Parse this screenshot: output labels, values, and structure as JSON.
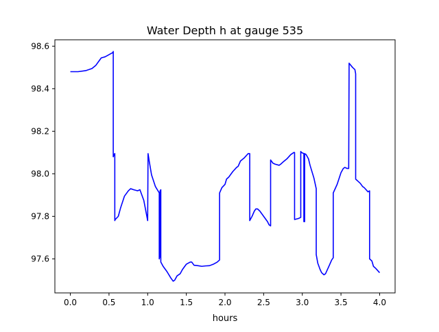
{
  "chart_data": {
    "type": "line",
    "title": "Water Depth h at gauge 535",
    "xlabel": "hours",
    "ylabel": "",
    "xlim": [
      -0.2,
      4.2
    ],
    "ylim": [
      97.44,
      98.63
    ],
    "xticks": [
      0.0,
      0.5,
      1.0,
      1.5,
      2.0,
      2.5,
      3.0,
      3.5,
      4.0
    ],
    "xtick_labels": [
      "0.0",
      "0.5",
      "1.0",
      "1.5",
      "2.0",
      "2.5",
      "3.0",
      "3.5",
      "4.0"
    ],
    "yticks": [
      97.6,
      97.8,
      98.0,
      98.2,
      98.4,
      98.6
    ],
    "ytick_labels": [
      "97.6",
      "97.8",
      "98.0",
      "98.2",
      "98.4",
      "98.6"
    ],
    "grid": false,
    "legend": "none",
    "line_color": "#0000ff",
    "series": [
      {
        "x": [
          0.0,
          0.1,
          0.2,
          0.28,
          0.33,
          0.37,
          0.4,
          0.45,
          0.5,
          0.55,
          0.555,
          0.555,
          0.565,
          0.575,
          0.575,
          0.58,
          0.62,
          0.65,
          0.7,
          0.75,
          0.78,
          0.82,
          0.87,
          0.9,
          0.95,
          1.0,
          1.005,
          1.02,
          1.05,
          1.1,
          1.15,
          1.15,
          1.16,
          1.16,
          1.17,
          1.17,
          1.2,
          1.25,
          1.3,
          1.33,
          1.35,
          1.38,
          1.42,
          1.45,
          1.5,
          1.55,
          1.57,
          1.6,
          1.65,
          1.7,
          1.75,
          1.8,
          1.85,
          1.9,
          1.93,
          1.93,
          1.96,
          2.0,
          2.02,
          2.05,
          2.1,
          2.15,
          2.17,
          2.2,
          2.25,
          2.3,
          2.32,
          2.32,
          2.35,
          2.38,
          2.4,
          2.42,
          2.45,
          2.5,
          2.55,
          2.57,
          2.59,
          2.59,
          2.6,
          2.62,
          2.65,
          2.7,
          2.72,
          2.75,
          2.8,
          2.85,
          2.89,
          2.9,
          2.9,
          2.95,
          2.98,
          2.98,
          2.99,
          3.02,
          3.02,
          3.03,
          3.03,
          3.05,
          3.08,
          3.1,
          3.15,
          3.18,
          3.18,
          3.2,
          3.23,
          3.25,
          3.28,
          3.3,
          3.35,
          3.38,
          3.4,
          3.4,
          3.45,
          3.5,
          3.53,
          3.55,
          3.58,
          3.6,
          3.605,
          3.605,
          3.65,
          3.68,
          3.69,
          3.69,
          3.72,
          3.75,
          3.78,
          3.8,
          3.85,
          3.87,
          3.87,
          3.9,
          3.92,
          3.95,
          4.0
        ],
        "y": [
          98.48,
          98.48,
          98.485,
          98.495,
          98.51,
          98.53,
          98.545,
          98.55,
          98.56,
          98.57,
          98.575,
          98.08,
          98.09,
          98.095,
          97.78,
          97.785,
          97.8,
          97.84,
          97.895,
          97.92,
          97.93,
          97.925,
          97.92,
          97.925,
          97.875,
          97.78,
          98.095,
          98.06,
          97.995,
          97.94,
          97.91,
          97.6,
          97.615,
          97.92,
          97.925,
          97.585,
          97.565,
          97.54,
          97.51,
          97.495,
          97.5,
          97.52,
          97.53,
          97.55,
          97.575,
          97.585,
          97.585,
          97.57,
          97.568,
          97.565,
          97.567,
          97.568,
          97.575,
          97.585,
          97.595,
          97.91,
          97.935,
          97.95,
          97.975,
          97.985,
          98.01,
          98.03,
          98.035,
          98.06,
          98.075,
          98.095,
          98.095,
          97.78,
          97.8,
          97.825,
          97.835,
          97.835,
          97.825,
          97.8,
          97.775,
          97.76,
          97.755,
          98.065,
          98.06,
          98.05,
          98.045,
          98.04,
          98.045,
          98.055,
          98.07,
          98.09,
          98.1,
          98.1,
          97.785,
          97.79,
          97.795,
          98.105,
          98.1,
          98.095,
          97.775,
          97.775,
          98.095,
          98.09,
          98.07,
          98.04,
          97.98,
          97.93,
          97.62,
          97.58,
          97.55,
          97.535,
          97.525,
          97.53,
          97.57,
          97.595,
          97.605,
          97.91,
          97.95,
          98.005,
          98.025,
          98.03,
          98.025,
          98.025,
          98.51,
          98.52,
          98.5,
          98.49,
          98.47,
          97.975,
          97.965,
          97.955,
          97.94,
          97.935,
          97.915,
          97.92,
          97.6,
          97.59,
          97.565,
          97.555,
          97.535
        ]
      }
    ]
  }
}
